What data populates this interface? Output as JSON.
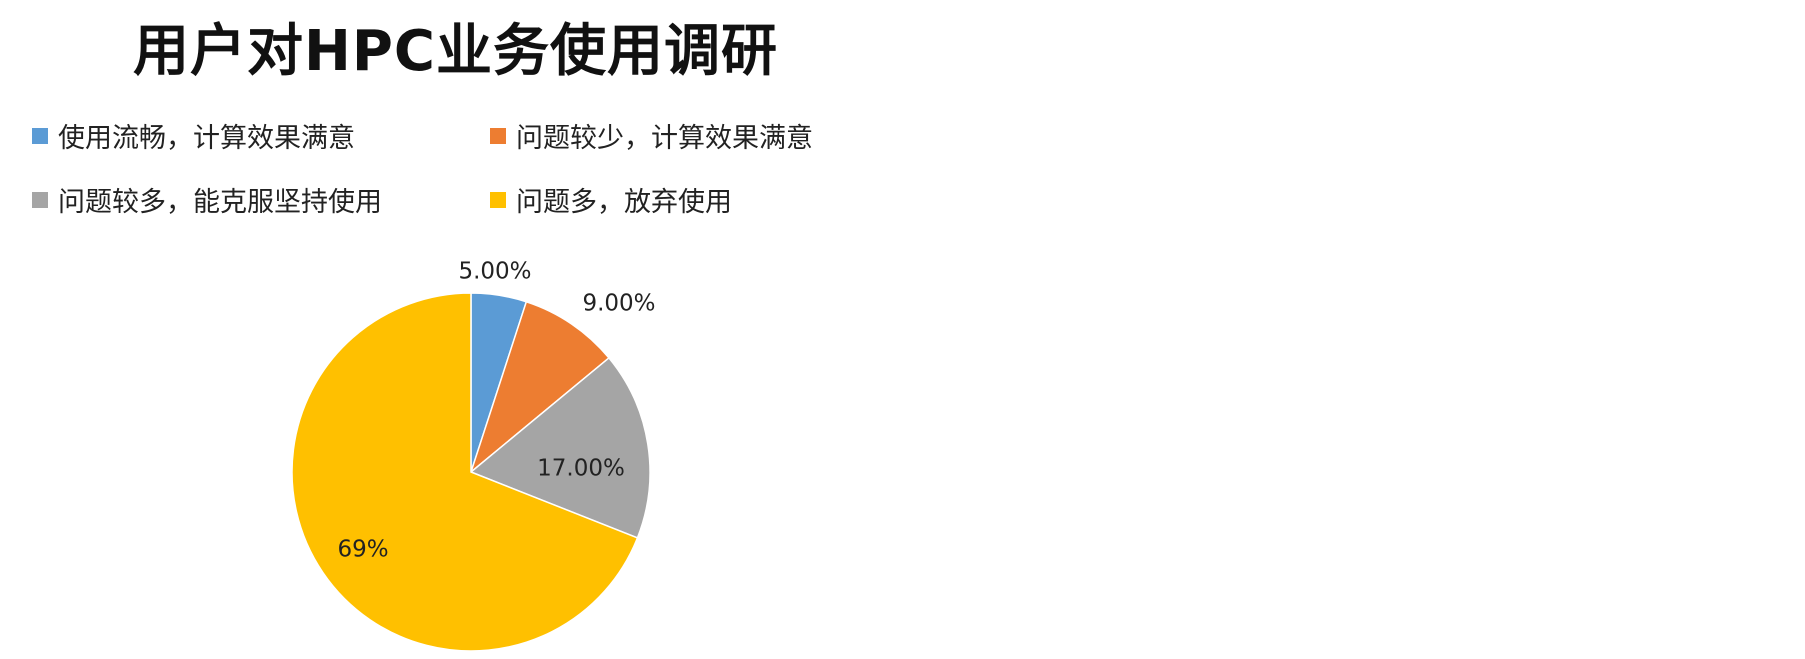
{
  "chart_data": {
    "type": "pie",
    "title": "用户对HPC业务使用调研",
    "legend_position": "top",
    "slices": [
      {
        "name": "使用流畅，计算效果满意",
        "value": 5,
        "label": "5.00%",
        "color": "#5B9BD5"
      },
      {
        "name": "问题较少，计算效果满意",
        "value": 9,
        "label": "9.00%",
        "color": "#ED7D31"
      },
      {
        "name": "问题较多，能克服坚持使用",
        "value": 17,
        "label": "17.00%",
        "color": "#A5A5A5"
      },
      {
        "name": "问题多，放弃使用",
        "value": 69,
        "label": "69%",
        "color": "#FFC000"
      }
    ]
  }
}
